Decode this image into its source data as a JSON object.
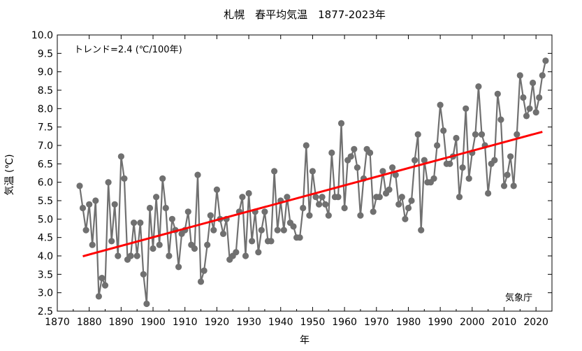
{
  "chart_data": {
    "type": "line",
    "title": "札幌　春平均気温　1877-2023年",
    "xlabel": "年",
    "ylabel": "気温 (℃)",
    "xlim": [
      1870,
      2025
    ],
    "ylim": [
      2.5,
      10.0
    ],
    "xticks": [
      1870,
      1880,
      1890,
      1900,
      1910,
      1920,
      1930,
      1940,
      1950,
      1960,
      1970,
      1980,
      1990,
      2000,
      2010,
      2020
    ],
    "yticks": [
      "2.5",
      "3.0",
      "3.5",
      "4.0",
      "4.5",
      "5.0",
      "5.5",
      "6.0",
      "6.5",
      "7.0",
      "7.5",
      "8.0",
      "8.5",
      "9.0",
      "9.5",
      "10.0"
    ],
    "annotation": "トレンド=2.4 (℃/100年)",
    "source": "気象庁",
    "grid": false,
    "series": [
      {
        "color": "#707070",
        "marker": "circle",
        "x": [
          1877,
          1878,
          1879,
          1880,
          1881,
          1882,
          1883,
          1884,
          1885,
          1886,
          1887,
          1888,
          1889,
          1890,
          1891,
          1892,
          1893,
          1894,
          1895,
          1896,
          1897,
          1898,
          1899,
          1900,
          1901,
          1902,
          1903,
          1904,
          1905,
          1906,
          1907,
          1908,
          1909,
          1910,
          1911,
          1912,
          1913,
          1914,
          1915,
          1916,
          1917,
          1918,
          1919,
          1920,
          1921,
          1922,
          1923,
          1924,
          1925,
          1926,
          1927,
          1928,
          1929,
          1930,
          1931,
          1932,
          1933,
          1934,
          1935,
          1936,
          1937,
          1938,
          1939,
          1940,
          1941,
          1942,
          1943,
          1944,
          1945,
          1946,
          1947,
          1948,
          1949,
          1950,
          1951,
          1952,
          1953,
          1954,
          1955,
          1956,
          1957,
          1958,
          1959,
          1960,
          1961,
          1962,
          1963,
          1964,
          1965,
          1966,
          1967,
          1968,
          1969,
          1970,
          1971,
          1972,
          1973,
          1974,
          1975,
          1976,
          1977,
          1978,
          1979,
          1980,
          1981,
          1982,
          1983,
          1984,
          1985,
          1986,
          1987,
          1988,
          1989,
          1990,
          1991,
          1992,
          1993,
          1994,
          1995,
          1996,
          1997,
          1998,
          1999,
          2000,
          2001,
          2002,
          2003,
          2004,
          2005,
          2006,
          2007,
          2008,
          2009,
          2010,
          2011,
          2012,
          2013,
          2014,
          2015,
          2016,
          2017,
          2018,
          2019,
          2020,
          2021,
          2022,
          2023
        ],
        "y": [
          5.9,
          5.3,
          4.7,
          5.4,
          4.3,
          5.5,
          2.9,
          3.4,
          3.2,
          6.0,
          4.4,
          5.4,
          4.0,
          6.7,
          6.1,
          3.9,
          4.0,
          4.9,
          4.0,
          4.9,
          3.5,
          2.7,
          5.3,
          4.2,
          5.6,
          4.3,
          6.1,
          5.3,
          4.0,
          5.0,
          4.7,
          3.7,
          4.6,
          4.7,
          5.2,
          4.3,
          4.2,
          6.2,
          3.3,
          3.6,
          4.3,
          5.1,
          4.7,
          5.8,
          5.0,
          4.6,
          5.0,
          3.9,
          4.0,
          4.1,
          5.2,
          5.6,
          4.0,
          5.7,
          4.4,
          5.2,
          4.1,
          4.7,
          5.2,
          4.4,
          4.4,
          6.3,
          4.7,
          5.5,
          4.7,
          5.6,
          4.9,
          4.8,
          4.5,
          4.5,
          5.3,
          7.0,
          5.1,
          6.3,
          5.6,
          5.4,
          5.6,
          5.4,
          5.1,
          6.8,
          5.6,
          5.6,
          7.6,
          5.3,
          6.6,
          6.7,
          6.9,
          6.4,
          5.1,
          6.1,
          6.9,
          6.8,
          5.2,
          5.6,
          5.6,
          6.3,
          5.7,
          5.8,
          6.4,
          6.2,
          5.4,
          5.6,
          5.0,
          5.3,
          5.5,
          6.6,
          7.3,
          4.7,
          6.6,
          6.0,
          6.0,
          6.1,
          7.0,
          8.1,
          7.4,
          6.5,
          6.5,
          6.7,
          7.2,
          5.6,
          6.4,
          8.0,
          6.1,
          6.8,
          7.3,
          8.6,
          7.3,
          7.0,
          5.7,
          6.5,
          6.6,
          8.4,
          7.7,
          5.9,
          6.2,
          6.7,
          5.9,
          7.3,
          8.9,
          8.3,
          7.8,
          8.0,
          8.7,
          7.9,
          8.3,
          8.9,
          9.3
        ]
      }
    ],
    "trend": {
      "color": "#ff0000",
      "x": [
        1878,
        2022
      ],
      "y": [
        3.99,
        7.37
      ]
    }
  }
}
